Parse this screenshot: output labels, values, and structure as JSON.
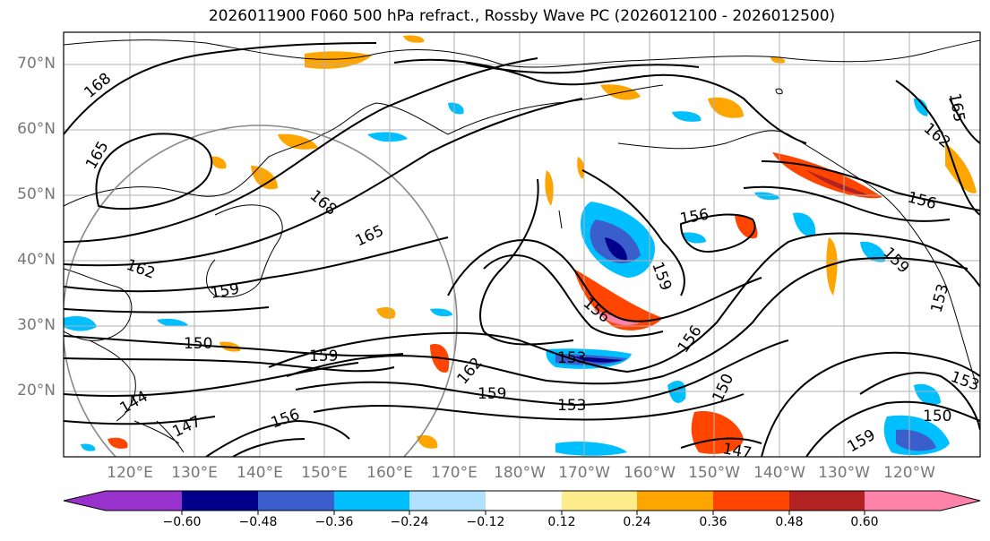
{
  "title": "2026011900 F060 500 hPa refract., Rossby Wave PC (2026012100 - 2026012500)",
  "lat_labels": [
    "70°N",
    "60°N",
    "50°N",
    "40°N",
    "30°N",
    "20°N"
  ],
  "lon_labels": [
    "120°E",
    "130°E",
    "140°E",
    "150°E",
    "160°E",
    "170°E",
    "180°W",
    "170°W",
    "160°W",
    "150°W",
    "140°W",
    "130°W",
    "120°W"
  ],
  "colorbar": {
    "ticks": [
      "−0.60",
      "−0.48",
      "−0.36",
      "−0.24",
      "−0.12",
      "0.12",
      "0.24",
      "0.36",
      "0.48",
      "0.60"
    ],
    "colors": [
      "#9932cc",
      "#00008b",
      "#3a5fcd",
      "#00bfff",
      "#b0e2ff",
      "#ffffff",
      "#ffec8b",
      "#ffa500",
      "#ff4500",
      "#b22222",
      "#ff82ab"
    ]
  },
  "contour_labels": [
    "168",
    "165",
    "168",
    "165",
    "162",
    "159",
    "150",
    "144",
    "147",
    "156",
    "159",
    "162",
    "153",
    "159",
    "153",
    "156",
    "159",
    "156",
    "156",
    "150",
    "147",
    "156",
    "159",
    "153",
    "150",
    "153",
    "159",
    "165",
    "162"
  ]
}
